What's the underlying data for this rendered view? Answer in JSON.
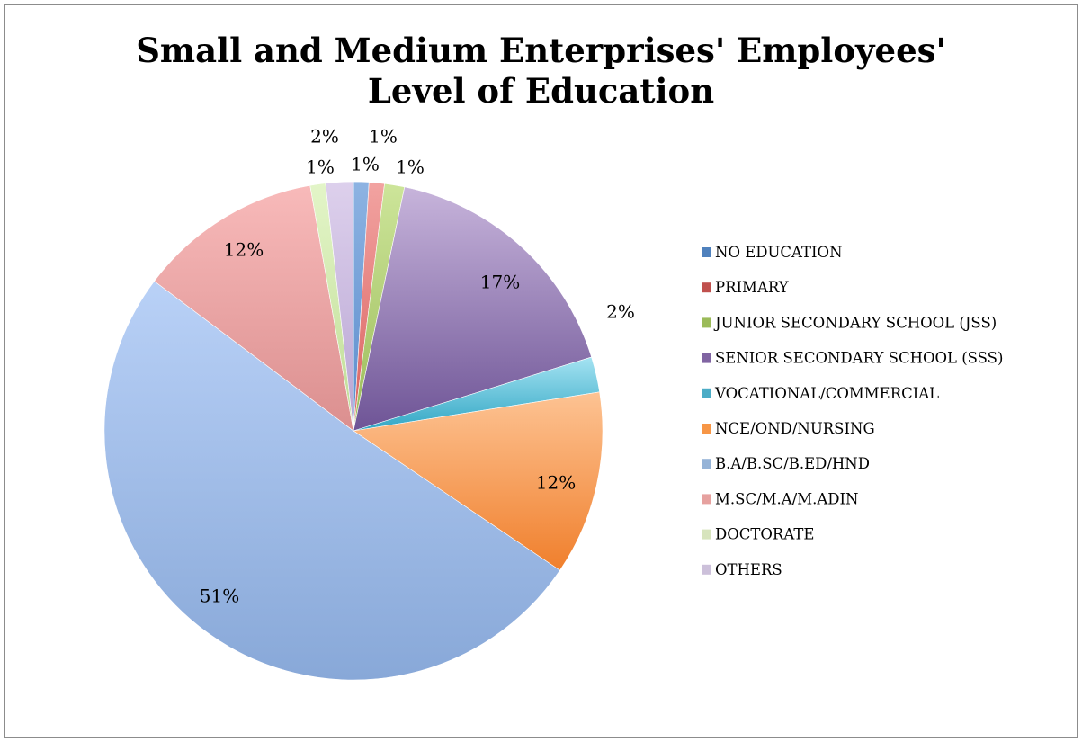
{
  "chart_data": {
    "type": "pie",
    "title_lines": [
      "Small and Medium Enterprises' Employees'",
      "Level of Education"
    ],
    "legend_position": "right",
    "slices": [
      {
        "name": "NO EDUCATION",
        "value": 1,
        "label": "1%",
        "color_top": "#8db3e2",
        "color_bottom": "#5b8ccc",
        "legend_color": "#4f81bd"
      },
      {
        "name": "PRIMARY",
        "value": 1,
        "label": "1%",
        "color_top": "#f2a3a1",
        "color_bottom": "#d9615e",
        "legend_color": "#c0504d"
      },
      {
        "name": "JUNIOR SECONDARY SCHOOL (JSS)",
        "value": 1.3,
        "label": "1%",
        "color_top": "#cde59a",
        "color_bottom": "#9bbb59",
        "legend_color": "#9bbb59"
      },
      {
        "name": "SENIOR SECONDARY SCHOOL (SSS)",
        "value": 17,
        "label": "17%",
        "color_top": "#c7b4db",
        "color_bottom": "#6e5496",
        "legend_color": "#8064a2"
      },
      {
        "name": "VOCATIONAL/COMMERCIAL",
        "value": 2.3,
        "label": "2%",
        "color_top": "#a5e3f2",
        "color_bottom": "#31a6c4",
        "legend_color": "#4bacc6"
      },
      {
        "name": "NCE/OND/NURSING",
        "value": 12,
        "label": "12%",
        "color_top": "#fdc393",
        "color_bottom": "#f07f2c",
        "legend_color": "#f79646"
      },
      {
        "name": "B.A/B.SC/B.ED/HND",
        "value": 51,
        "label": "51%",
        "color_top": "#b9d1f7",
        "color_bottom": "#88a8d8",
        "legend_color": "#95b3d7"
      },
      {
        "name": "M.SC/M.A/M.ADIN",
        "value": 12,
        "label": "12%",
        "color_top": "#f8baba",
        "color_bottom": "#db8f8f",
        "legend_color": "#e6a19f"
      },
      {
        "name": "DOCTORATE",
        "value": 1,
        "label": "1%",
        "color_top": "#e3f5c8",
        "color_bottom": "#bfdc95",
        "legend_color": "#d7e4bd"
      },
      {
        "name": "OTHERS",
        "value": 1.8,
        "label": "2%",
        "color_top": "#ddd0ec",
        "color_bottom": "#b8a5d3",
        "legend_color": "#ccc0da"
      }
    ]
  }
}
